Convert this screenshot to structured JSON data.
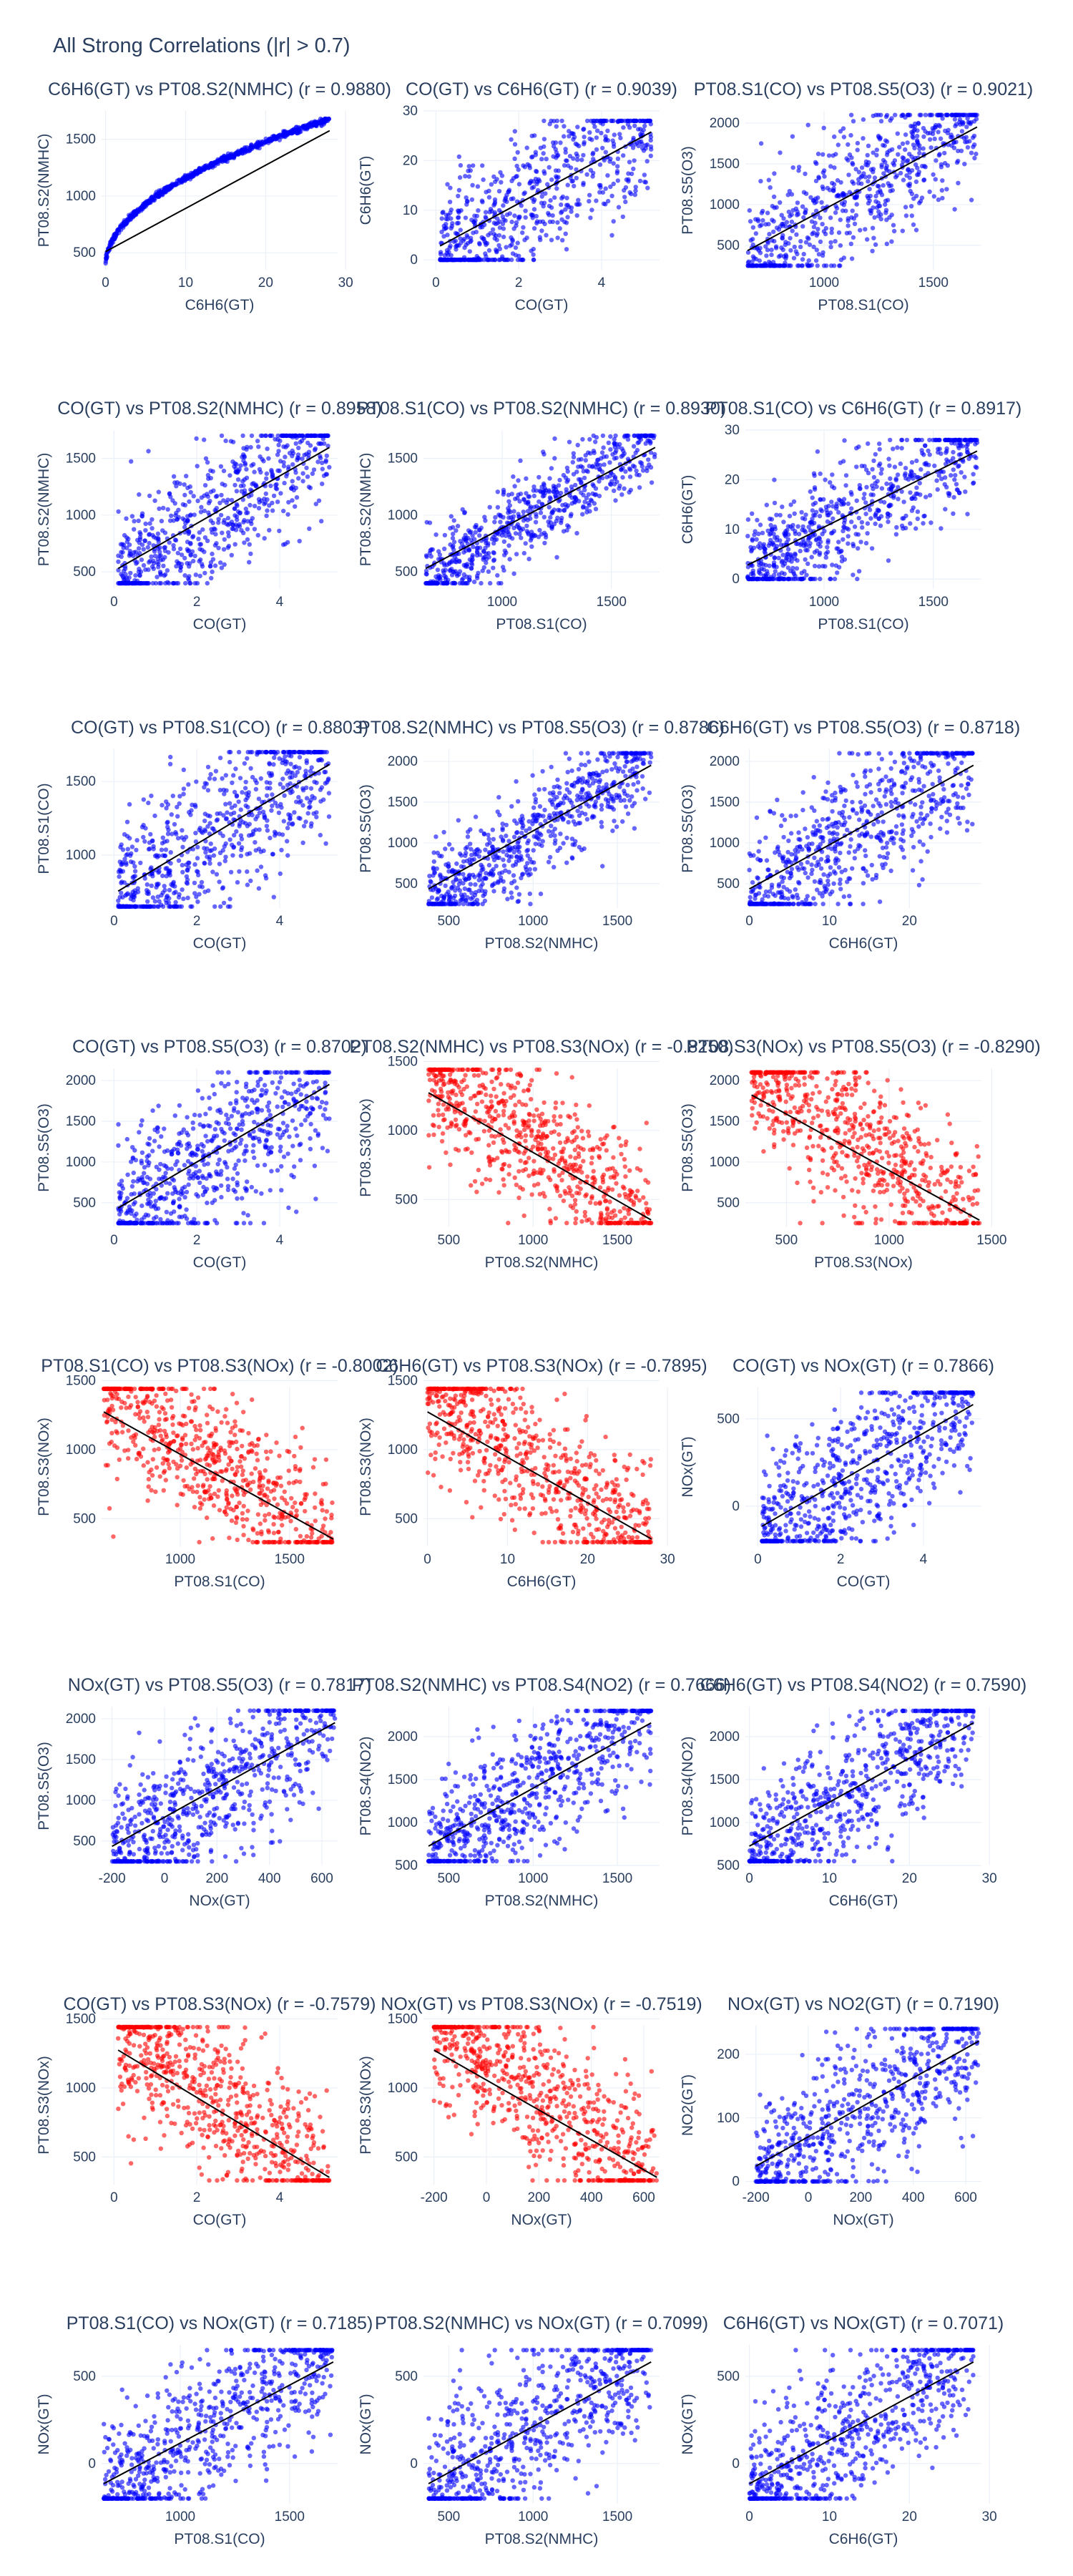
{
  "figure_title": "All Strong Correlations (|r| > 0.7)",
  "colors": {
    "positive": "#0000ff",
    "negative": "#ff0000",
    "fit_line": "#000000",
    "grid": "#ebf0f8",
    "text": "#2a3f5f"
  },
  "chart_data": [
    {
      "type": "scatter",
      "title": "C6H6(GT) vs PT08.S2(NMHC) (r = 0.9880)",
      "xlabel": "C6H6(GT)",
      "ylabel": "PT08.S2(NMHC)",
      "r": 0.988,
      "xlim": [
        -0.5,
        29
      ],
      "ylim": [
        350,
        1750
      ],
      "xticks": [
        0,
        10,
        20,
        30
      ],
      "yticks": [
        500,
        1000,
        1500
      ],
      "xdata": [
        0,
        28
      ],
      "ydata": [
        380,
        1680
      ],
      "spread": 0.02,
      "shape": "curve"
    },
    {
      "type": "scatter",
      "title": "CO(GT) vs C6H6(GT) (r = 0.9039)",
      "xlabel": "CO(GT)",
      "ylabel": "C6H6(GT)",
      "r": 0.9039,
      "xlim": [
        -0.3,
        5.4
      ],
      "ylim": [
        -2,
        30
      ],
      "xticks": [
        0,
        2,
        4
      ],
      "yticks": [
        0,
        10,
        20,
        30
      ],
      "xdata": [
        0.1,
        5.2
      ],
      "ydata": [
        0,
        28
      ],
      "spread": 0.25
    },
    {
      "type": "scatter",
      "title": "PT08.S1(CO) vs PT08.S5(O3) (r = 0.9021)",
      "xlabel": "PT08.S1(CO)",
      "ylabel": "PT08.S5(O3)",
      "r": 0.9021,
      "xlim": [
        640,
        1720
      ],
      "ylim": [
        200,
        2150
      ],
      "xticks": [
        1000,
        1500
      ],
      "yticks": [
        500,
        1000,
        1500,
        2000
      ],
      "xdata": [
        650,
        1700
      ],
      "ydata": [
        250,
        2100
      ],
      "spread": 0.22
    },
    {
      "type": "scatter",
      "title": "CO(GT) vs PT08.S2(NMHC) (r = 0.8958)",
      "xlabel": "CO(GT)",
      "ylabel": "PT08.S2(NMHC)",
      "r": 0.8958,
      "xlim": [
        -0.3,
        5.4
      ],
      "ylim": [
        350,
        1750
      ],
      "xticks": [
        0,
        2,
        4
      ],
      "yticks": [
        500,
        1000,
        1500
      ],
      "xdata": [
        0.1,
        5.2
      ],
      "ydata": [
        400,
        1700
      ],
      "spread": 0.22
    },
    {
      "type": "scatter",
      "title": "PT08.S1(CO) vs PT08.S2(NMHC) (r = 0.8930)",
      "xlabel": "PT08.S1(CO)",
      "ylabel": "PT08.S2(NMHC)",
      "r": 0.893,
      "xlim": [
        640,
        1720
      ],
      "ylim": [
        350,
        1750
      ],
      "xticks": [
        1000,
        1500
      ],
      "yticks": [
        500,
        1000,
        1500
      ],
      "xdata": [
        650,
        1700
      ],
      "ydata": [
        400,
        1700
      ],
      "spread": 0.14
    },
    {
      "type": "scatter",
      "title": "PT08.S1(CO) vs C6H6(GT) (r = 0.8917)",
      "xlabel": "PT08.S1(CO)",
      "ylabel": "C6H6(GT)",
      "r": 0.8917,
      "xlim": [
        640,
        1720
      ],
      "ylim": [
        -2,
        30
      ],
      "xticks": [
        1000,
        1500
      ],
      "yticks": [
        0,
        10,
        20,
        30
      ],
      "xdata": [
        650,
        1700
      ],
      "ydata": [
        0,
        28
      ],
      "spread": 0.2
    },
    {
      "type": "scatter",
      "title": "CO(GT) vs PT08.S1(CO) (r = 0.8803)",
      "xlabel": "CO(GT)",
      "ylabel": "PT08.S1(CO)",
      "r": 0.8803,
      "xlim": [
        -0.3,
        5.4
      ],
      "ylim": [
        640,
        1720
      ],
      "xticks": [
        0,
        2,
        4
      ],
      "yticks": [
        1000,
        1500
      ],
      "xdata": [
        0.1,
        5.2
      ],
      "ydata": [
        650,
        1700
      ],
      "spread": 0.25
    },
    {
      "type": "scatter",
      "title": "PT08.S2(NMHC) vs PT08.S5(O3) (r = 0.8786)",
      "xlabel": "PT08.S2(NMHC)",
      "ylabel": "PT08.S5(O3)",
      "r": 0.8786,
      "xlim": [
        350,
        1750
      ],
      "ylim": [
        200,
        2150
      ],
      "xticks": [
        500,
        1000,
        1500
      ],
      "yticks": [
        500,
        1000,
        1500,
        2000
      ],
      "xdata": [
        380,
        1700
      ],
      "ydata": [
        250,
        2100
      ],
      "spread": 0.16
    },
    {
      "type": "scatter",
      "title": "C6H6(GT) vs PT08.S5(O3) (r = 0.8718)",
      "xlabel": "C6H6(GT)",
      "ylabel": "PT08.S5(O3)",
      "r": 0.8718,
      "xlim": [
        -0.5,
        29
      ],
      "ylim": [
        200,
        2150
      ],
      "xticks": [
        0,
        10,
        20
      ],
      "yticks": [
        500,
        1000,
        1500,
        2000
      ],
      "xdata": [
        0,
        28
      ],
      "ydata": [
        250,
        2100
      ],
      "spread": 0.24
    },
    {
      "type": "scatter",
      "title": "CO(GT) vs PT08.S5(O3) (r = 0.8702)",
      "xlabel": "CO(GT)",
      "ylabel": "PT08.S5(O3)",
      "r": 0.8702,
      "xlim": [
        -0.3,
        5.4
      ],
      "ylim": [
        200,
        2150
      ],
      "xticks": [
        0,
        2,
        4
      ],
      "yticks": [
        500,
        1000,
        1500,
        2000
      ],
      "xdata": [
        0.1,
        5.2
      ],
      "ydata": [
        250,
        2100
      ],
      "spread": 0.26
    },
    {
      "type": "scatter",
      "title": "PT08.S2(NMHC) vs PT08.S3(NOx) (r = -0.8250)",
      "xlabel": "PT08.S2(NMHC)",
      "ylabel": "PT08.S3(NOx)",
      "r": -0.825,
      "xlim": [
        350,
        1750
      ],
      "ylim": [
        300,
        1450
      ],
      "xticks": [
        500,
        1000,
        1500
      ],
      "yticks": [
        500,
        1000,
        1500
      ],
      "xdata": [
        380,
        1700
      ],
      "ydata": [
        330,
        1440
      ],
      "spread": 0.22
    },
    {
      "type": "scatter",
      "title": "PT08.S3(NOx) vs PT08.S5(O3) (r = -0.8290)",
      "xlabel": "PT08.S3(NOx)",
      "ylabel": "PT08.S5(O3)",
      "r": -0.829,
      "xlim": [
        300,
        1450
      ],
      "ylim": [
        200,
        2150
      ],
      "xticks": [
        500,
        1000,
        1500
      ],
      "yticks": [
        500,
        1000,
        1500,
        2000
      ],
      "xdata": [
        330,
        1440
      ],
      "ydata": [
        250,
        2100
      ],
      "spread": 0.24
    },
    {
      "type": "scatter",
      "title": "PT08.S1(CO) vs PT08.S3(NOx) (r = -0.8002)",
      "xlabel": "PT08.S1(CO)",
      "ylabel": "PT08.S3(NOx)",
      "r": -0.8002,
      "xlim": [
        640,
        1720
      ],
      "ylim": [
        300,
        1450
      ],
      "xticks": [
        1000,
        1500
      ],
      "yticks": [
        500,
        1000,
        1500
      ],
      "xdata": [
        650,
        1700
      ],
      "ydata": [
        330,
        1440
      ],
      "spread": 0.24
    },
    {
      "type": "scatter",
      "title": "C6H6(GT) vs PT08.S3(NOx) (r = -0.7895)",
      "xlabel": "C6H6(GT)",
      "ylabel": "PT08.S3(NOx)",
      "r": -0.7895,
      "xlim": [
        -0.5,
        29
      ],
      "ylim": [
        300,
        1450
      ],
      "xticks": [
        0,
        10,
        20,
        30
      ],
      "yticks": [
        500,
        1000,
        1500
      ],
      "xdata": [
        0,
        28
      ],
      "ydata": [
        330,
        1440
      ],
      "spread": 0.24
    },
    {
      "type": "scatter",
      "title": "CO(GT) vs NOx(GT) (r = 0.7866)",
      "xlabel": "CO(GT)",
      "ylabel": "NOx(GT)",
      "r": 0.7866,
      "xlim": [
        -0.3,
        5.4
      ],
      "ylim": [
        -230,
        680
      ],
      "xticks": [
        0,
        2,
        4
      ],
      "yticks": [
        0,
        500
      ],
      "xdata": [
        0.1,
        5.2
      ],
      "ydata": [
        -200,
        650
      ],
      "spread": 0.26
    },
    {
      "type": "scatter",
      "title": "NOx(GT) vs PT08.S5(O3) (r = 0.7817)",
      "xlabel": "NOx(GT)",
      "ylabel": "PT08.S5(O3)",
      "r": 0.7817,
      "xlim": [
        -240,
        660
      ],
      "ylim": [
        200,
        2150
      ],
      "xticks": [
        -200,
        0,
        200,
        400,
        600
      ],
      "yticks": [
        500,
        1000,
        1500,
        2000
      ],
      "xdata": [
        -200,
        650
      ],
      "ydata": [
        250,
        2100
      ],
      "spread": 0.26
    },
    {
      "type": "scatter",
      "title": "PT08.S2(NMHC) vs PT08.S4(NO2) (r = 0.7666)",
      "xlabel": "PT08.S2(NMHC)",
      "ylabel": "PT08.S4(NO2)",
      "r": 0.7666,
      "xlim": [
        350,
        1750
      ],
      "ylim": [
        500,
        2350
      ],
      "xticks": [
        500,
        1000,
        1500
      ],
      "yticks": [
        500,
        1000,
        1500,
        2000
      ],
      "xdata": [
        380,
        1700
      ],
      "ydata": [
        550,
        2300
      ],
      "spread": 0.22
    },
    {
      "type": "scatter",
      "title": "C6H6(GT) vs PT08.S4(NO2) (r = 0.7590)",
      "xlabel": "C6H6(GT)",
      "ylabel": "PT08.S4(NO2)",
      "r": 0.759,
      "xlim": [
        -0.5,
        29
      ],
      "ylim": [
        500,
        2350
      ],
      "xticks": [
        0,
        10,
        20,
        30
      ],
      "yticks": [
        500,
        1000,
        1500,
        2000
      ],
      "xdata": [
        0,
        28
      ],
      "ydata": [
        550,
        2300
      ],
      "spread": 0.24
    },
    {
      "type": "scatter",
      "title": "CO(GT) vs PT08.S3(NOx) (r = -0.7579)",
      "xlabel": "CO(GT)",
      "ylabel": "PT08.S3(NOx)",
      "r": -0.7579,
      "xlim": [
        -0.3,
        5.4
      ],
      "ylim": [
        300,
        1450
      ],
      "xticks": [
        0,
        2,
        4
      ],
      "yticks": [
        500,
        1000,
        1500
      ],
      "xdata": [
        0.1,
        5.2
      ],
      "ydata": [
        330,
        1440
      ],
      "spread": 0.26
    },
    {
      "type": "scatter",
      "title": "NOx(GT) vs PT08.S3(NOx) (r = -0.7519)",
      "xlabel": "NOx(GT)",
      "ylabel": "PT08.S3(NOx)",
      "r": -0.7519,
      "xlim": [
        -240,
        660
      ],
      "ylim": [
        300,
        1450
      ],
      "xticks": [
        -200,
        0,
        200,
        400,
        600
      ],
      "yticks": [
        500,
        1000,
        1500
      ],
      "xdata": [
        -200,
        650
      ],
      "ydata": [
        330,
        1440
      ],
      "spread": 0.26
    },
    {
      "type": "scatter",
      "title": "NOx(GT) vs NO2(GT) (r = 0.7190)",
      "xlabel": "NOx(GT)",
      "ylabel": "NO2(GT)",
      "r": 0.719,
      "xlim": [
        -240,
        660
      ],
      "ylim": [
        -5,
        245
      ],
      "xticks": [
        -200,
        0,
        200,
        400,
        600
      ],
      "yticks": [
        0,
        100,
        200
      ],
      "xdata": [
        -200,
        650
      ],
      "ydata": [
        0,
        240
      ],
      "spread": 0.26
    },
    {
      "type": "scatter",
      "title": "PT08.S1(CO) vs NOx(GT) (r = 0.7185)",
      "xlabel": "PT08.S1(CO)",
      "ylabel": "NOx(GT)",
      "r": 0.7185,
      "xlim": [
        640,
        1720
      ],
      "ylim": [
        -230,
        680
      ],
      "xticks": [
        1000,
        1500
      ],
      "yticks": [
        0,
        500
      ],
      "xdata": [
        650,
        1700
      ],
      "ydata": [
        -200,
        650
      ],
      "spread": 0.26
    },
    {
      "type": "scatter",
      "title": "PT08.S2(NMHC) vs NOx(GT) (r = 0.7099)",
      "xlabel": "PT08.S2(NMHC)",
      "ylabel": "NOx(GT)",
      "r": 0.7099,
      "xlim": [
        350,
        1750
      ],
      "ylim": [
        -230,
        680
      ],
      "xticks": [
        500,
        1000,
        1500
      ],
      "yticks": [
        0,
        500
      ],
      "xdata": [
        380,
        1700
      ],
      "ydata": [
        -200,
        650
      ],
      "spread": 0.26
    },
    {
      "type": "scatter",
      "title": "C6H6(GT) vs NOx(GT) (r = 0.7071)",
      "xlabel": "C6H6(GT)",
      "ylabel": "NOx(GT)",
      "r": 0.7071,
      "xlim": [
        -0.5,
        29
      ],
      "ylim": [
        -230,
        680
      ],
      "xticks": [
        0,
        10,
        20,
        30
      ],
      "yticks": [
        0,
        500
      ],
      "xdata": [
        0,
        28
      ],
      "ydata": [
        -200,
        650
      ],
      "spread": 0.26
    }
  ]
}
